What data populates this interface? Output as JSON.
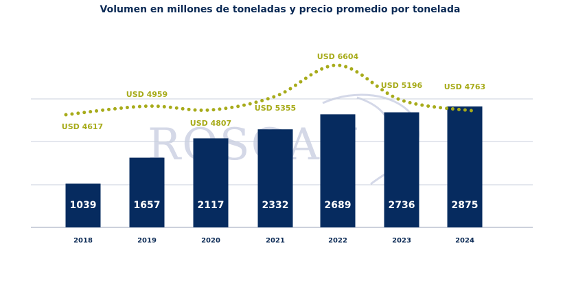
{
  "chart_data": {
    "type": "bar",
    "title": "Volumen en millones de toneladas y precio promedio por tonelada",
    "categories": [
      "2018",
      "2019",
      "2020",
      "2021",
      "2022",
      "2023",
      "2024"
    ],
    "series": [
      {
        "values": [
          1039,
          1657,
          2117,
          2332,
          2689,
          2736,
          2875
        ]
      }
    ],
    "line_series": {
      "type": "line",
      "style": "dotted",
      "values": [
        4617,
        4959,
        4807,
        5355,
        6604,
        5196,
        4763
      ],
      "labels": [
        "USD 4617",
        "USD 4959",
        "USD 4807",
        "USD 5355",
        "USD 6604",
        "USD 5196",
        "USD 4763"
      ]
    },
    "grid": "horizontal",
    "watermark": "ROSGAN",
    "colors": {
      "bar": "#062b5f",
      "line": "#a7ab1a",
      "bar_label": "#ffffff",
      "axis_text": "#0b2a55",
      "grid": "#c9cfdc",
      "watermark": "#c6cbe0"
    }
  }
}
